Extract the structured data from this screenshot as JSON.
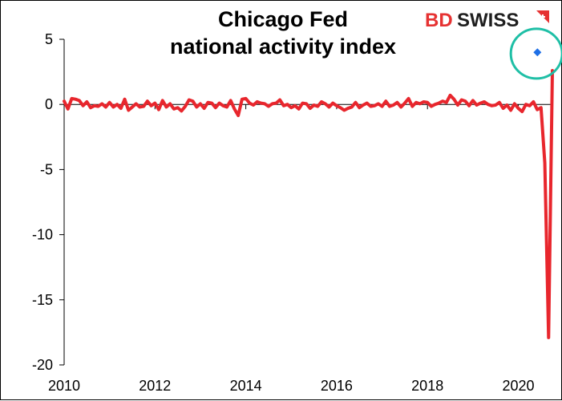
{
  "chart_data": {
    "type": "line",
    "title": [
      "Chicago Fed",
      "national activity index"
    ],
    "xlabel": "",
    "ylabel": "",
    "xlim": [
      2010,
      2020.75
    ],
    "ylim": [
      -20,
      5
    ],
    "x_ticks": [
      2010,
      2012,
      2014,
      2016,
      2018,
      2020
    ],
    "y_ticks": [
      5,
      0,
      -5,
      -10,
      -15,
      -20
    ],
    "grid": false,
    "series": [
      {
        "color": "#e8262d",
        "x_start": 2010.0,
        "x_step": 0.0833333,
        "values": [
          0.25,
          -0.35,
          0.45,
          0.4,
          0.3,
          -0.1,
          0.2,
          -0.25,
          -0.1,
          -0.15,
          0.05,
          -0.2,
          0.15,
          -0.2,
          0.0,
          -0.3,
          0.4,
          -0.45,
          -0.2,
          0.05,
          -0.2,
          -0.15,
          0.25,
          -0.1,
          0.1,
          -0.4,
          0.3,
          -0.2,
          0.05,
          -0.35,
          -0.25,
          -0.5,
          -0.15,
          0.35,
          0.25,
          -0.2,
          0.05,
          -0.3,
          0.15,
          0.1,
          -0.25,
          0.1,
          -0.1,
          -0.2,
          0.3,
          -0.35,
          -0.85,
          0.4,
          0.45,
          0.1,
          -0.05,
          0.2,
          0.1,
          0.05,
          -0.15,
          0.05,
          0.1,
          0.35,
          -0.1,
          0.0,
          -0.25,
          -0.1,
          -0.35,
          0.1,
          0.05,
          -0.3,
          -0.05,
          -0.15,
          0.2,
          0.05,
          -0.2,
          0.1,
          -0.1,
          -0.25,
          -0.45,
          -0.3,
          -0.2,
          0.15,
          -0.25,
          -0.05,
          0.1,
          -0.15,
          -0.1,
          0.05,
          -0.15,
          0.25,
          -0.15,
          -0.05,
          0.15,
          -0.2,
          0.1,
          0.45,
          -0.15,
          0.15,
          0.05,
          0.2,
          0.15,
          -0.15,
          0.0,
          0.1,
          0.25,
          0.15,
          0.7,
          0.4,
          -0.05,
          0.35,
          0.25,
          -0.1,
          0.3,
          -0.05,
          0.1,
          0.2,
          0.0,
          -0.1,
          -0.05,
          0.15,
          -0.3,
          -0.05,
          -0.45,
          0.05,
          -0.3,
          -0.55,
          0.0,
          -0.1,
          0.2,
          -0.4,
          -0.25,
          -4.5,
          -17.9,
          2.6
        ]
      },
      {
        "color": "#1e6fe6",
        "marker": "diamond",
        "x": [
          2020.42
        ],
        "values": [
          4.0
        ]
      }
    ],
    "annotations": [
      {
        "type": "circle",
        "color": "#1fbfa6",
        "x": 2020.4,
        "y": 3.9
      }
    ]
  },
  "logo": {
    "part1": "BD",
    "part2": "SWISS",
    "colors": {
      "bd": "#e63232",
      "swiss": "#1e1e1e",
      "mark": "#e63232"
    }
  }
}
